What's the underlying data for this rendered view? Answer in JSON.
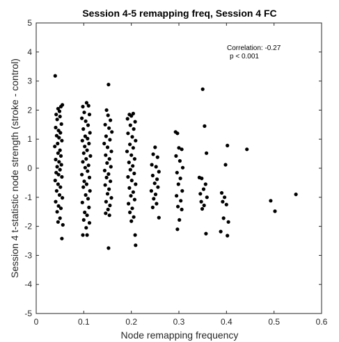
{
  "chart_data": {
    "type": "scatter",
    "title": "Session 4-5 remapping freq, Session 4 FC",
    "xlabel": "Node remapping frequency",
    "ylabel": "Session 4 t-statistic node strength (stroke - control)",
    "xlim": [
      0,
      0.6
    ],
    "ylim": [
      -5,
      5
    ],
    "x_ticks": [
      0,
      0.1,
      0.2,
      0.3,
      0.4,
      0.5,
      0.6
    ],
    "x_tick_labels": [
      "0",
      "0.1",
      "0.2",
      "0.3",
      "0.4",
      "0.5",
      "0.6"
    ],
    "y_ticks": [
      -5,
      -4,
      -3,
      -2,
      -1,
      0,
      1,
      2,
      3,
      4,
      5
    ],
    "y_tick_labels": [
      "-5",
      "-4",
      "-3",
      "-2",
      "-1",
      "0",
      "1",
      "2",
      "3",
      "4",
      "5"
    ],
    "annotations": [
      "Correlation: -0.27",
      "p < 0.001"
    ],
    "marker_color": "#000000",
    "series": [
      {
        "name": "nodes",
        "points": [
          [
            0.04,
            3.18
          ],
          [
            0.046,
            2.05
          ],
          [
            0.052,
            2.12
          ],
          [
            0.055,
            2.18
          ],
          [
            0.049,
            1.96
          ],
          [
            0.042,
            1.85
          ],
          [
            0.05,
            1.78
          ],
          [
            0.044,
            1.68
          ],
          [
            0.053,
            1.52
          ],
          [
            0.041,
            1.4
          ],
          [
            0.047,
            1.3
          ],
          [
            0.051,
            1.22
          ],
          [
            0.043,
            1.12
          ],
          [
            0.048,
            1.05
          ],
          [
            0.054,
            0.95
          ],
          [
            0.045,
            0.85
          ],
          [
            0.039,
            0.75
          ],
          [
            0.05,
            0.62
          ],
          [
            0.046,
            0.52
          ],
          [
            0.052,
            0.42
          ],
          [
            0.041,
            0.3
          ],
          [
            0.048,
            0.22
          ],
          [
            0.053,
            0.12
          ],
          [
            0.044,
            0.05
          ],
          [
            0.05,
            -0.05
          ],
          [
            0.042,
            -0.15
          ],
          [
            0.047,
            -0.22
          ],
          [
            0.054,
            -0.3
          ],
          [
            0.04,
            -0.42
          ],
          [
            0.046,
            -0.55
          ],
          [
            0.051,
            -0.65
          ],
          [
            0.043,
            -0.78
          ],
          [
            0.049,
            -0.92
          ],
          [
            0.055,
            -1.02
          ],
          [
            0.041,
            -1.15
          ],
          [
            0.047,
            -1.3
          ],
          [
            0.052,
            -1.38
          ],
          [
            0.044,
            -1.5
          ],
          [
            0.05,
            -1.72
          ],
          [
            0.046,
            -1.85
          ],
          [
            0.056,
            -1.95
          ],
          [
            0.054,
            -2.42
          ],
          [
            0.098,
            2.12
          ],
          [
            0.106,
            2.25
          ],
          [
            0.11,
            2.15
          ],
          [
            0.101,
            1.92
          ],
          [
            0.112,
            1.85
          ],
          [
            0.096,
            1.72
          ],
          [
            0.104,
            1.62
          ],
          [
            0.109,
            1.48
          ],
          [
            0.099,
            1.35
          ],
          [
            0.113,
            1.22
          ],
          [
            0.103,
            1.1
          ],
          [
            0.108,
            1.02
          ],
          [
            0.097,
            0.95
          ],
          [
            0.111,
            0.85
          ],
          [
            0.102,
            0.75
          ],
          [
            0.107,
            0.62
          ],
          [
            0.1,
            0.52
          ],
          [
            0.114,
            0.42
          ],
          [
            0.105,
            0.32
          ],
          [
            0.098,
            0.22
          ],
          [
            0.11,
            0.1
          ],
          [
            0.103,
            0.02
          ],
          [
            0.108,
            -0.1
          ],
          [
            0.096,
            -0.22
          ],
          [
            0.112,
            -0.32
          ],
          [
            0.101,
            -0.45
          ],
          [
            0.106,
            -0.55
          ],
          [
            0.099,
            -0.65
          ],
          [
            0.113,
            -0.78
          ],
          [
            0.104,
            -0.92
          ],
          [
            0.109,
            -1.05
          ],
          [
            0.097,
            -1.18
          ],
          [
            0.111,
            -1.35
          ],
          [
            0.102,
            -1.52
          ],
          [
            0.107,
            -1.62
          ],
          [
            0.1,
            -1.78
          ],
          [
            0.112,
            -1.88
          ],
          [
            0.105,
            -2.05
          ],
          [
            0.098,
            -2.3
          ],
          [
            0.107,
            -2.3
          ],
          [
            0.152,
            2.88
          ],
          [
            0.148,
            2.0
          ],
          [
            0.151,
            1.82
          ],
          [
            0.156,
            1.65
          ],
          [
            0.145,
            1.5
          ],
          [
            0.153,
            1.38
          ],
          [
            0.159,
            1.25
          ],
          [
            0.147,
            1.1
          ],
          [
            0.155,
            0.98
          ],
          [
            0.143,
            0.85
          ],
          [
            0.15,
            0.72
          ],
          [
            0.158,
            0.58
          ],
          [
            0.146,
            0.45
          ],
          [
            0.154,
            0.32
          ],
          [
            0.149,
            0.18
          ],
          [
            0.157,
            0.05
          ],
          [
            0.144,
            -0.08
          ],
          [
            0.152,
            -0.2
          ],
          [
            0.148,
            -0.32
          ],
          [
            0.156,
            -0.45
          ],
          [
            0.145,
            -0.58
          ],
          [
            0.153,
            -0.72
          ],
          [
            0.15,
            -0.88
          ],
          [
            0.158,
            -1.02
          ],
          [
            0.147,
            -1.15
          ],
          [
            0.155,
            -1.28
          ],
          [
            0.151,
            -1.42
          ],
          [
            0.146,
            -1.55
          ],
          [
            0.154,
            -1.62
          ],
          [
            0.152,
            -2.75
          ],
          [
            0.196,
            1.85
          ],
          [
            0.204,
            1.88
          ],
          [
            0.2,
            1.8
          ],
          [
            0.192,
            1.7
          ],
          [
            0.208,
            1.6
          ],
          [
            0.198,
            1.48
          ],
          [
            0.205,
            1.35
          ],
          [
            0.193,
            1.2
          ],
          [
            0.202,
            1.08
          ],
          [
            0.209,
            0.95
          ],
          [
            0.197,
            0.82
          ],
          [
            0.204,
            0.7
          ],
          [
            0.191,
            0.58
          ],
          [
            0.2,
            0.45
          ],
          [
            0.207,
            0.32
          ],
          [
            0.195,
            0.2
          ],
          [
            0.203,
            0.08
          ],
          [
            0.198,
            -0.05
          ],
          [
            0.206,
            -0.18
          ],
          [
            0.193,
            -0.3
          ],
          [
            0.201,
            -0.42
          ],
          [
            0.209,
            -0.55
          ],
          [
            0.196,
            -0.68
          ],
          [
            0.204,
            -0.82
          ],
          [
            0.199,
            -0.95
          ],
          [
            0.207,
            -1.08
          ],
          [
            0.194,
            -1.22
          ],
          [
            0.202,
            -1.38
          ],
          [
            0.197,
            -1.52
          ],
          [
            0.205,
            -1.68
          ],
          [
            0.2,
            -1.82
          ],
          [
            0.208,
            -2.3
          ],
          [
            0.209,
            -2.65
          ],
          [
            0.25,
            0.72
          ],
          [
            0.246,
            0.48
          ],
          [
            0.255,
            0.38
          ],
          [
            0.243,
            0.12
          ],
          [
            0.252,
            0.05
          ],
          [
            0.258,
            -0.12
          ],
          [
            0.245,
            -0.25
          ],
          [
            0.254,
            -0.38
          ],
          [
            0.249,
            -0.52
          ],
          [
            0.256,
            -0.65
          ],
          [
            0.242,
            -0.78
          ],
          [
            0.251,
            -0.9
          ],
          [
            0.247,
            -1.05
          ],
          [
            0.253,
            -1.22
          ],
          [
            0.245,
            -1.35
          ],
          [
            0.258,
            -1.7
          ],
          [
            0.293,
            1.25
          ],
          [
            0.297,
            1.2
          ],
          [
            0.3,
            0.7
          ],
          [
            0.306,
            0.65
          ],
          [
            0.294,
            0.42
          ],
          [
            0.302,
            0.25
          ],
          [
            0.308,
            0.02
          ],
          [
            0.296,
            -0.15
          ],
          [
            0.303,
            -0.35
          ],
          [
            0.299,
            -0.55
          ],
          [
            0.307,
            -0.78
          ],
          [
            0.295,
            -0.95
          ],
          [
            0.304,
            -1.12
          ],
          [
            0.298,
            -1.32
          ],
          [
            0.306,
            -1.42
          ],
          [
            0.301,
            -1.78
          ],
          [
            0.297,
            -2.1
          ],
          [
            0.35,
            2.72
          ],
          [
            0.354,
            1.45
          ],
          [
            0.358,
            0.52
          ],
          [
            0.343,
            -0.32
          ],
          [
            0.348,
            -0.35
          ],
          [
            0.356,
            -0.55
          ],
          [
            0.352,
            -0.72
          ],
          [
            0.345,
            -0.88
          ],
          [
            0.359,
            -1.0
          ],
          [
            0.347,
            -1.15
          ],
          [
            0.353,
            -1.28
          ],
          [
            0.349,
            -1.4
          ],
          [
            0.357,
            -2.25
          ],
          [
            0.402,
            0.78
          ],
          [
            0.398,
            0.12
          ],
          [
            0.39,
            -0.85
          ],
          [
            0.396,
            -1.0
          ],
          [
            0.392,
            -1.15
          ],
          [
            0.4,
            -1.25
          ],
          [
            0.394,
            -1.72
          ],
          [
            0.404,
            -1.85
          ],
          [
            0.402,
            -2.32
          ],
          [
            0.388,
            -2.18
          ],
          [
            0.443,
            0.65
          ],
          [
            0.493,
            -1.12
          ],
          [
            0.502,
            -1.48
          ],
          [
            0.546,
            -0.9
          ]
        ]
      }
    ]
  }
}
